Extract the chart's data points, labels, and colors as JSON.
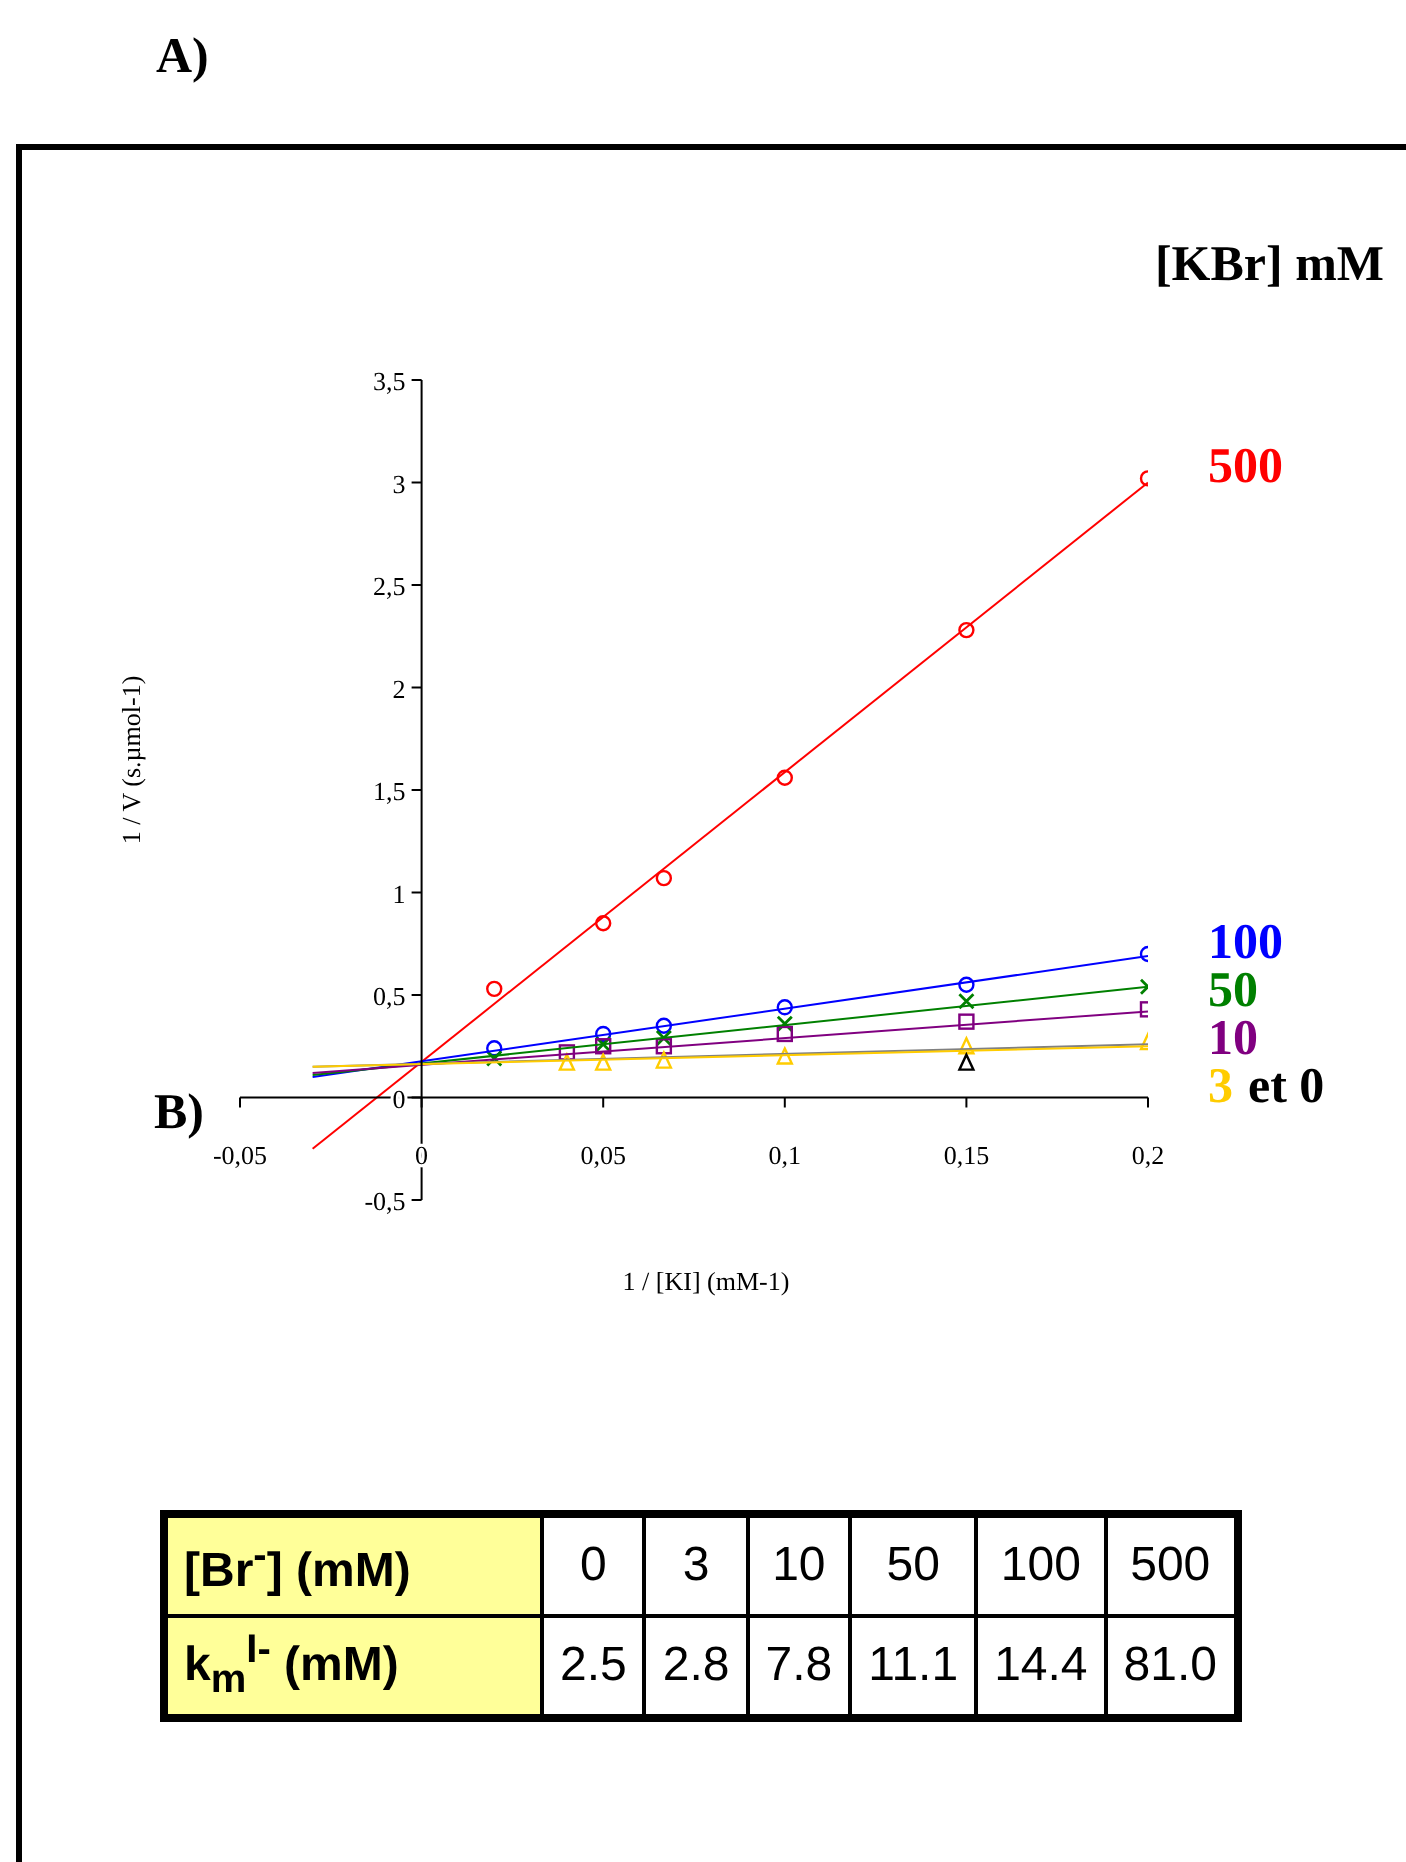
{
  "chart_data": [
    {
      "type": "scatter",
      "xlabel": "1 / [KI] (mM-1)",
      "ylabel": "1 / V (s.µmol-1)",
      "legend_title": "[KBr] mM",
      "annotations": [
        "A)",
        "B)"
      ],
      "xlim": [
        -0.05,
        0.2
      ],
      "xticks": [
        {
          "value": -0.05,
          "label": "-0,05"
        },
        0,
        {
          "value": 0.05,
          "label": "0,05"
        },
        {
          "value": 0.1,
          "label": "0,1"
        },
        {
          "value": 0.15,
          "label": "0,15"
        },
        {
          "value": 0.2,
          "label": "0,2"
        }
      ],
      "ylim": [
        -0.5,
        3.5
      ],
      "yticks": [
        {
          "value": -0.5,
          "label": "-0,5"
        },
        0,
        {
          "value": 0.5,
          "label": "0,5"
        },
        1,
        {
          "value": 1.5,
          "label": "1,5"
        },
        2,
        {
          "value": 2.5,
          "label": "2,5"
        },
        3,
        {
          "value": 3.5,
          "label": "3,5"
        }
      ],
      "series": [
        {
          "name": "500",
          "color": "#ff0000",
          "marker": "circle",
          "x": [
            0.02,
            0.05,
            0.0667,
            0.1,
            0.15,
            0.2
          ],
          "values": [
            0.53,
            0.85,
            1.07,
            1.56,
            2.28,
            3.02
          ]
        },
        {
          "name": "100",
          "color": "#0000ff",
          "marker": "circle",
          "x": [
            0.02,
            0.05,
            0.0667,
            0.1,
            0.15,
            0.2
          ],
          "values": [
            0.24,
            0.31,
            0.35,
            0.44,
            0.55,
            0.7
          ]
        },
        {
          "name": "50",
          "color": "#008000",
          "marker": "cross",
          "x": [
            0.02,
            0.05,
            0.0667,
            0.1,
            0.15,
            0.2
          ],
          "values": [
            0.19,
            0.26,
            0.29,
            0.36,
            0.47,
            0.54
          ]
        },
        {
          "name": "10",
          "color": "#800080",
          "marker": "square",
          "x": [
            0.04,
            0.05,
            0.0667,
            0.1,
            0.15,
            0.2
          ],
          "values": [
            0.22,
            0.25,
            0.25,
            0.31,
            0.37,
            0.43
          ]
        },
        {
          "name": "3",
          "color": "#ffcc00",
          "marker": "triangle",
          "x": [
            0.04,
            0.05,
            0.0667,
            0.1,
            0.15,
            0.2
          ],
          "values": [
            0.17,
            0.17,
            0.18,
            0.2,
            0.25,
            0.27
          ]
        },
        {
          "name": "et 0",
          "color": "#000000",
          "marker": "triangle",
          "x": [
            0.15
          ],
          "values": [
            0.17
          ]
        },
        {
          "type": "line",
          "color": "#ff0000",
          "x": [
            -0.03,
            0.2
          ],
          "values": [
            -0.25,
            3.0
          ]
        },
        {
          "type": "line",
          "color": "#0000ff",
          "x": [
            -0.03,
            0.2
          ],
          "values": [
            0.1,
            0.69
          ]
        },
        {
          "type": "line",
          "color": "#008000",
          "x": [
            -0.03,
            0.2
          ],
          "values": [
            0.11,
            0.54
          ]
        },
        {
          "type": "line",
          "color": "#800080",
          "x": [
            -0.03,
            0.2
          ],
          "values": [
            0.12,
            0.42
          ]
        },
        {
          "type": "line",
          "color": "#808080",
          "x": [
            -0.03,
            0.2
          ],
          "values": [
            0.15,
            0.26
          ]
        },
        {
          "type": "line",
          "color": "#ffcc00",
          "x": [
            -0.03,
            0.2
          ],
          "values": [
            0.15,
            0.25
          ]
        }
      ]
    },
    {
      "type": "other",
      "xlabel": "[Br$^{-}$] (mM)",
      "ylabel": "k$_{m}$$^{I-}$ (mM)",
      "categories": [
        "0",
        "3",
        "10",
        "50",
        "100",
        "500"
      ],
      "values": [
        2.5,
        2.8,
        7.8,
        11.1,
        14.4,
        81.0
      ],
      "value_labels": [
        "2.5",
        "2.8",
        "7.8",
        "11.1",
        "14.4",
        "81.0"
      ]
    }
  ]
}
